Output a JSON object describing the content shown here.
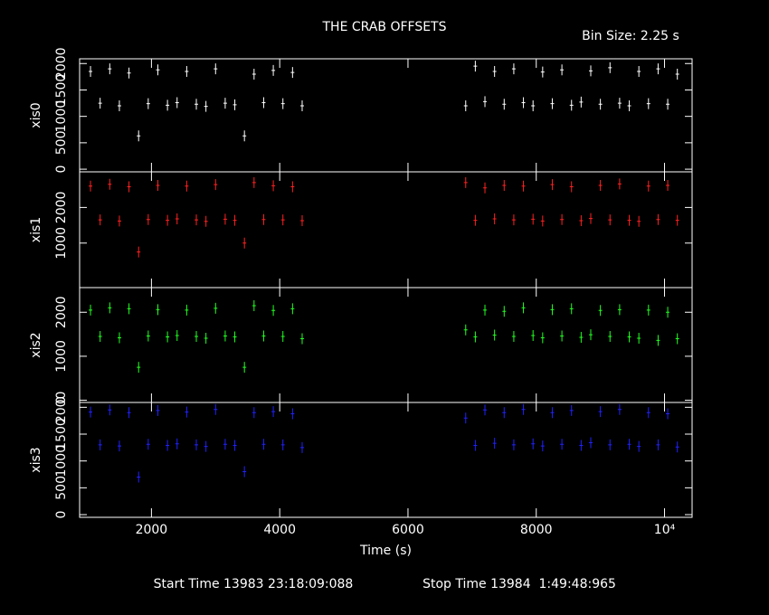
{
  "title": "THE CRAB OFFSETS",
  "bin_size": "Bin Size: 2.25 s",
  "start_time": "Start Time 13983 23:18:09:088",
  "stop_time": "Stop Time 13984  1:49:48:965",
  "chart_data": [
    {
      "type": "scatter",
      "ylabel": "xis0",
      "color": "#ffffff",
      "x": [
        1050,
        1200,
        1350,
        1500,
        1650,
        1800,
        1950,
        2100,
        2250,
        2400,
        2550,
        2700,
        2850,
        3000,
        3150,
        3300,
        3450,
        3600,
        3750,
        3900,
        4050,
        4200,
        4350,
        6900,
        7050,
        7200,
        7350,
        7500,
        7650,
        7800,
        7950,
        8100,
        8250,
        8400,
        8550,
        8700,
        8850,
        9000,
        9150,
        9300,
        9450,
        9600,
        9750,
        9900,
        10050,
        10200
      ],
      "values": [
        1850,
        1250,
        1900,
        1200,
        1820,
        630,
        1240,
        1880,
        1210,
        1260,
        1850,
        1230,
        1190,
        1900,
        1250,
        1220,
        630,
        1800,
        1260,
        1870,
        1240,
        1830,
        1200,
        1200,
        1950,
        1280,
        1850,
        1230,
        1900,
        1260,
        1200,
        1840,
        1240,
        1880,
        1210,
        1270,
        1860,
        1230,
        1920,
        1250,
        1200,
        1850,
        1240,
        1900,
        1230,
        1800
      ],
      "xlim": [
        880,
        10430
      ],
      "xticks": [
        2000,
        4000,
        6000,
        8000,
        {
          "value": 10000,
          "label": "10⁴"
        }
      ],
      "ylim": [
        -50,
        2090
      ],
      "yticks": [
        0,
        500,
        1000,
        1500,
        2000
      ]
    },
    {
      "type": "scatter",
      "ylabel": "xis1",
      "color": "#ff2020",
      "x": [
        1050,
        1200,
        1350,
        1500,
        1650,
        1800,
        1950,
        2100,
        2250,
        2400,
        2550,
        2700,
        2850,
        3000,
        3150,
        3300,
        3450,
        3600,
        3750,
        3900,
        4050,
        4200,
        4350,
        6900,
        7050,
        7200,
        7350,
        7500,
        7650,
        7800,
        7950,
        8100,
        8250,
        8400,
        8550,
        8700,
        8850,
        9000,
        9150,
        9300,
        9450,
        9600,
        9750,
        9900,
        10050,
        10200
      ],
      "values": [
        2600,
        1650,
        2650,
        1620,
        2580,
        750,
        1660,
        2620,
        1640,
        1680,
        2600,
        1650,
        1610,
        2640,
        1670,
        1640,
        1000,
        2700,
        1660,
        2610,
        1650,
        2580,
        1630,
        2700,
        1640,
        2550,
        1680,
        2620,
        1650,
        2600,
        1670,
        1620,
        2640,
        1660,
        2580,
        1630,
        1690,
        2620,
        1650,
        2660,
        1640,
        1610,
        2600,
        1660,
        2620,
        1640
      ],
      "xlim": [
        880,
        10430
      ],
      "xticks": [
        2000,
        4000,
        6000,
        8000,
        {
          "value": 10000,
          "label": "10⁴"
        }
      ],
      "ylim": [
        -250,
        3000
      ],
      "yticks": [
        1000,
        2000
      ]
    },
    {
      "type": "scatter",
      "ylabel": "xis2",
      "color": "#20ff20",
      "x": [
        1050,
        1200,
        1350,
        1500,
        1650,
        1800,
        1950,
        2100,
        2250,
        2400,
        2550,
        2700,
        2850,
        3000,
        3150,
        3300,
        3450,
        3600,
        3750,
        3900,
        4050,
        4200,
        4350,
        6900,
        7050,
        7200,
        7350,
        7500,
        7650,
        7800,
        7950,
        8100,
        8250,
        8400,
        8550,
        8700,
        8850,
        9000,
        9150,
        9300,
        9450,
        9600,
        9750,
        9900,
        10050,
        10200
      ],
      "values": [
        2050,
        1450,
        2100,
        1420,
        2080,
        750,
        1460,
        2060,
        1440,
        1470,
        2050,
        1450,
        1410,
        2090,
        1460,
        1440,
        750,
        2150,
        1460,
        2040,
        1450,
        2080,
        1400,
        1600,
        1440,
        2050,
        1480,
        2020,
        1450,
        2100,
        1470,
        1420,
        2060,
        1460,
        2080,
        1430,
        1490,
        2040,
        1450,
        2060,
        1440,
        1410,
        2050,
        1360,
        2000,
        1400
      ],
      "xlim": [
        880,
        10430
      ],
      "xticks": [
        2000,
        4000,
        6000,
        8000,
        {
          "value": 10000,
          "label": "10⁴"
        }
      ],
      "ylim": [
        -50,
        2560
      ],
      "yticks": [
        0,
        1000,
        2000
      ]
    },
    {
      "type": "scatter",
      "ylabel": "xis3",
      "color": "#2020ff",
      "xlabel": "Time (s)",
      "x": [
        1050,
        1200,
        1350,
        1500,
        1650,
        1800,
        1950,
        2100,
        2250,
        2400,
        2550,
        2700,
        2850,
        3000,
        3150,
        3300,
        3450,
        3600,
        3750,
        3900,
        4050,
        4200,
        4350,
        6900,
        7050,
        7200,
        7350,
        7500,
        7650,
        7800,
        7950,
        8100,
        8250,
        8400,
        8550,
        8700,
        8850,
        9000,
        9150,
        9300,
        9450,
        9600,
        9750,
        9900,
        10050,
        10200
      ],
      "values": [
        1910,
        1300,
        1950,
        1280,
        1900,
        700,
        1310,
        1940,
        1290,
        1320,
        1910,
        1300,
        1270,
        1960,
        1310,
        1290,
        800,
        1900,
        1310,
        1920,
        1300,
        1880,
        1250,
        1800,
        1290,
        1950,
        1330,
        1900,
        1300,
        1960,
        1320,
        1280,
        1900,
        1310,
        1940,
        1290,
        1340,
        1920,
        1300,
        1960,
        1310,
        1270,
        1900,
        1300,
        1880,
        1260
      ],
      "xlim": [
        880,
        10430
      ],
      "xticks": [
        2000,
        4000,
        6000,
        8000,
        {
          "value": 10000,
          "label": "10⁴"
        }
      ],
      "ylim": [
        -50,
        2090
      ],
      "yticks": [
        0,
        500,
        1000,
        1500,
        2000
      ]
    }
  ]
}
